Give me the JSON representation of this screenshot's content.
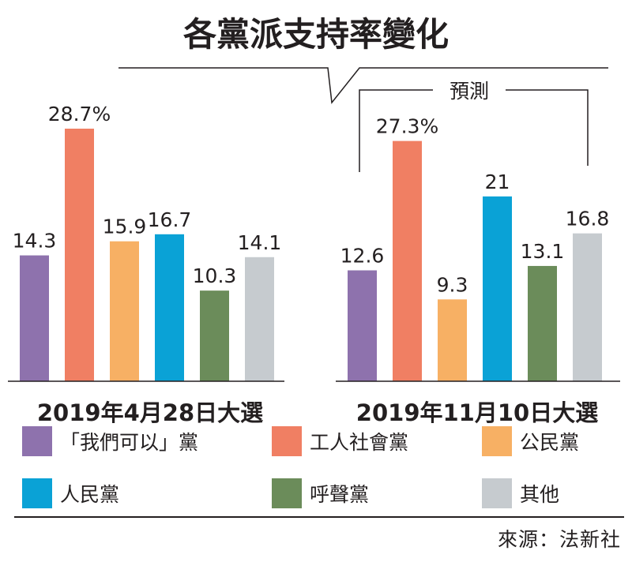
{
  "title": "各黨派支持率變化",
  "prediction_label": "預測",
  "source": "來源：法新社",
  "colors": [
    "#8e72ad",
    "#f07f63",
    "#f7b064",
    "#0aa2d6",
    "#6b8c5a",
    "#c6cbcf"
  ],
  "chart_data": [
    {
      "type": "bar",
      "title": "2019年4月28日大選",
      "categories": [
        "「我們可以」黨",
        "工人社會黨",
        "公民黨",
        "人民黨",
        "呼聲黨",
        "其他"
      ],
      "values": [
        14.3,
        28.7,
        15.9,
        16.7,
        10.3,
        14.1
      ],
      "labels": [
        "14.3",
        "28.7%",
        "15.9",
        "16.7",
        "10.3",
        "14.1"
      ],
      "ylim": [
        0,
        30
      ]
    },
    {
      "type": "bar",
      "title": "2019年11月10日大選",
      "categories": [
        "「我們可以」黨",
        "工人社會黨",
        "公民黨",
        "人民黨",
        "呼聲黨",
        "其他"
      ],
      "values": [
        12.6,
        27.3,
        9.3,
        21,
        13.1,
        16.8
      ],
      "labels": [
        "12.6",
        "27.3%",
        "9.3",
        "21",
        "13.1",
        "16.8"
      ],
      "ylim": [
        0,
        30
      ]
    }
  ],
  "legend": [
    {
      "label": "「我們可以」黨",
      "color": "#8e72ad"
    },
    {
      "label": "工人社會黨",
      "color": "#f07f63"
    },
    {
      "label": "公民黨",
      "color": "#f7b064"
    },
    {
      "label": "人民黨",
      "color": "#0aa2d6"
    },
    {
      "label": "呼聲黨",
      "color": "#6b8c5a"
    },
    {
      "label": "其他",
      "color": "#c6cbcf"
    }
  ]
}
